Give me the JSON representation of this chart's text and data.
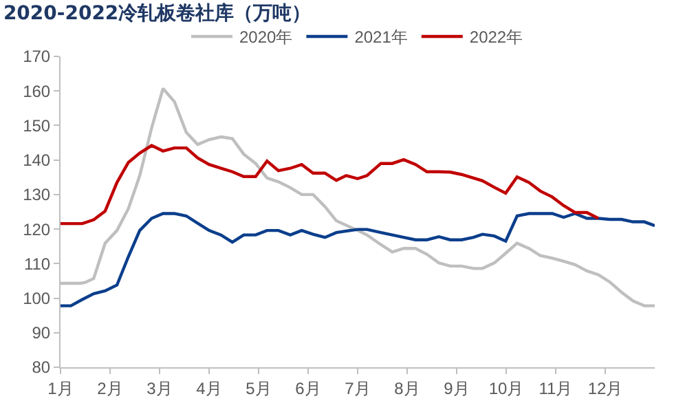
{
  "chart_data": {
    "type": "line",
    "title": "2020-2022冷轧板卷社库（万吨）",
    "xlim": [
      1,
      13
    ],
    "xticks": [
      {
        "value": 1,
        "label": "1月"
      },
      {
        "value": 2,
        "label": "2月"
      },
      {
        "value": 3,
        "label": "3月"
      },
      {
        "value": 4,
        "label": "4月"
      },
      {
        "value": 5,
        "label": "5月"
      },
      {
        "value": 6,
        "label": "6月"
      },
      {
        "value": 7,
        "label": "7月"
      },
      {
        "value": 8,
        "label": "8月"
      },
      {
        "value": 9,
        "label": "9月"
      },
      {
        "value": 10,
        "label": "10月"
      },
      {
        "value": 11,
        "label": "11月"
      },
      {
        "value": 12,
        "label": "12月"
      }
    ],
    "ylim": [
      80,
      170
    ],
    "yticks": [
      80,
      90,
      100,
      110,
      120,
      130,
      140,
      150,
      160,
      170
    ],
    "grid": false,
    "legend": "top",
    "marker": "none",
    "line_style": "solid",
    "series": [
      {
        "name": "2020年",
        "color": "#bfbfbf",
        "x": [
          1.0,
          1.39,
          1.49,
          1.67,
          1.9,
          2.14,
          2.37,
          2.6,
          2.84,
          3.07,
          3.3,
          3.54,
          3.77,
          4.0,
          4.24,
          4.47,
          4.7,
          4.94,
          5.17,
          5.4,
          5.64,
          5.87,
          6.1,
          6.34,
          6.57,
          7.0,
          7.19,
          7.47,
          7.7,
          7.93,
          8.17,
          8.4,
          8.64,
          8.87,
          9.1,
          9.34,
          9.52,
          9.76,
          9.99,
          10.22,
          10.46,
          10.69,
          10.93,
          11.16,
          11.39,
          11.63,
          11.86,
          12.09,
          12.33,
          12.56,
          12.79,
          13.0
        ],
        "values": [
          104.3,
          104.3,
          104.5,
          105.7,
          115.9,
          119.6,
          125.9,
          135.5,
          149.3,
          160.7,
          156.9,
          148,
          144.5,
          145.9,
          146.7,
          146.2,
          141.7,
          139,
          134.8,
          133.7,
          132,
          130,
          130,
          126.5,
          122.4,
          119.6,
          118.3,
          115.5,
          113.4,
          114.4,
          114.4,
          112.7,
          110.2,
          109.3,
          109.3,
          108.6,
          108.6,
          110.2,
          113,
          115.9,
          114.4,
          112.3,
          111.6,
          110.7,
          109.7,
          107.9,
          106.8,
          104.7,
          101.7,
          99.2,
          97.8,
          97.8
        ]
      },
      {
        "name": "2021年",
        "color": "#0b3e8c",
        "x": [
          1.0,
          1.21,
          1.44,
          1.67,
          1.9,
          2.14,
          2.37,
          2.6,
          2.84,
          3.07,
          3.3,
          3.54,
          3.77,
          4.0,
          4.24,
          4.47,
          4.7,
          4.94,
          5.17,
          5.4,
          5.64,
          5.87,
          6.1,
          6.34,
          6.57,
          7.0,
          7.19,
          7.47,
          7.7,
          7.93,
          8.17,
          8.4,
          8.64,
          8.87,
          9.1,
          9.34,
          9.52,
          9.76,
          9.99,
          10.22,
          10.46,
          10.69,
          10.93,
          11.16,
          11.39,
          11.63,
          11.86,
          12.09,
          12.33,
          12.56,
          12.79,
          13.0
        ],
        "values": [
          97.8,
          97.8,
          99.6,
          101.3,
          102.1,
          103.8,
          112,
          119.6,
          123.1,
          124.5,
          124.5,
          123.8,
          121.7,
          119.6,
          118.3,
          116.2,
          118.3,
          118.3,
          119.6,
          119.6,
          118.3,
          119.6,
          118.5,
          117.6,
          119,
          119.9,
          119.9,
          119,
          118.3,
          117.6,
          116.9,
          116.9,
          117.8,
          116.9,
          116.9,
          117.6,
          118.5,
          118,
          116.5,
          123.8,
          124.5,
          124.5,
          124.5,
          123.4,
          124.5,
          123.1,
          123.1,
          122.8,
          122.8,
          122.1,
          122.1,
          121
        ]
      },
      {
        "name": "2022年",
        "color": "#c00000",
        "x": [
          1.0,
          1.44,
          1.67,
          1.9,
          2.14,
          2.37,
          2.6,
          2.84,
          3.07,
          3.3,
          3.54,
          3.77,
          4.0,
          4.24,
          4.47,
          4.7,
          4.94,
          5.17,
          5.4,
          5.64,
          5.87,
          6.1,
          6.34,
          6.57,
          6.77,
          7.0,
          7.19,
          7.47,
          7.7,
          7.93,
          8.17,
          8.4,
          8.64,
          8.87,
          9.1,
          9.34,
          9.52,
          9.76,
          9.99,
          10.22,
          10.46,
          10.69,
          10.93,
          11.16,
          11.39,
          11.63,
          11.86
        ],
        "values": [
          121.6,
          121.6,
          122.7,
          125.2,
          133.5,
          139.3,
          142,
          144.2,
          142.6,
          143.5,
          143.5,
          140.6,
          138.7,
          137.6,
          136.6,
          135.2,
          135.2,
          139.7,
          136.9,
          137.6,
          138.7,
          136.2,
          136.2,
          134.1,
          135.5,
          134.6,
          135.5,
          139,
          139,
          140.1,
          138.7,
          136.6,
          136.6,
          136.5,
          135.8,
          134.8,
          134,
          132.1,
          130.4,
          135.1,
          133.5,
          131,
          129.3,
          126.8,
          124.8,
          124.8,
          123.1
        ]
      }
    ]
  }
}
